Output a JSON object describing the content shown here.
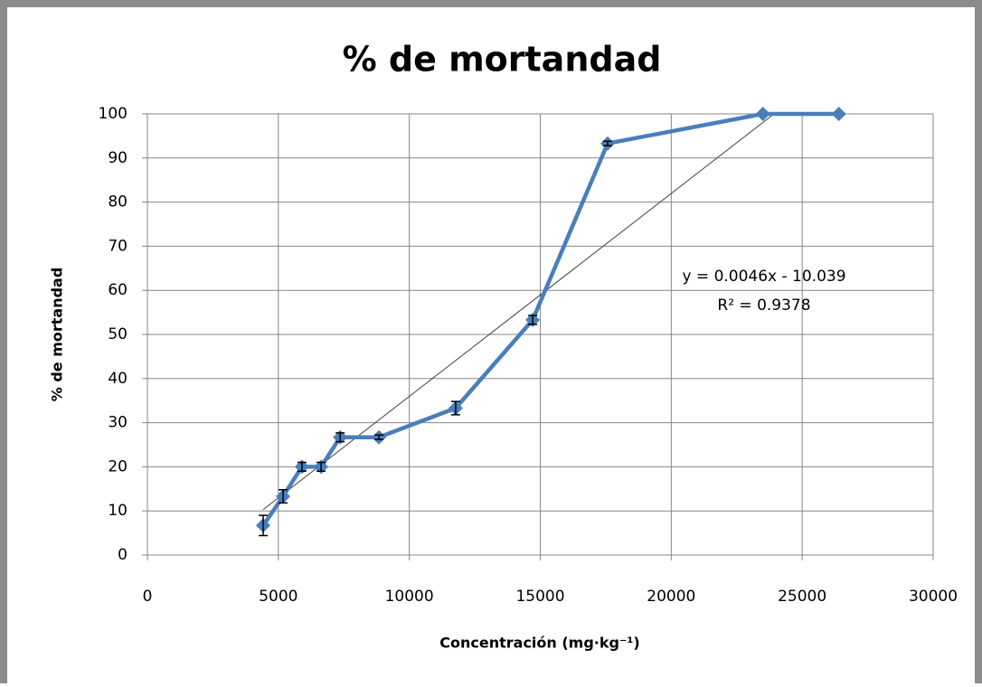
{
  "chart_data": {
    "type": "line",
    "title": "% de mortandad",
    "x_label": "Concentración (mg·kg⁻¹)",
    "y_label": "% de mortandad",
    "x": [
      4420,
      5180,
      5900,
      6630,
      7360,
      8840,
      11770,
      14710,
      17570,
      23500,
      26400
    ],
    "series": [
      {
        "name": "% de mortandad",
        "color": "#4a7ebb",
        "values": [
          6.7,
          13.3,
          20,
          20,
          26.7,
          26.7,
          33.3,
          53.3,
          93.3,
          100,
          100
        ],
        "errors": [
          2.3,
          1.5,
          1,
          1,
          1,
          0.5,
          1.5,
          1,
          0.5,
          0,
          0
        ]
      }
    ],
    "trendline": {
      "slope": 0.0046,
      "intercept": -10.039,
      "color": "#404040",
      "equation_label": "y = 0.0046x - 10.039",
      "r2_label": "R² = 0.9378"
    },
    "xlim": [
      0,
      30000
    ],
    "xticks": [
      0,
      5000,
      10000,
      15000,
      20000,
      25000,
      30000
    ],
    "ylim": [
      0,
      100
    ],
    "yticks": [
      0,
      10,
      20,
      30,
      40,
      50,
      60,
      70,
      80,
      90,
      100
    ],
    "grid": true
  }
}
